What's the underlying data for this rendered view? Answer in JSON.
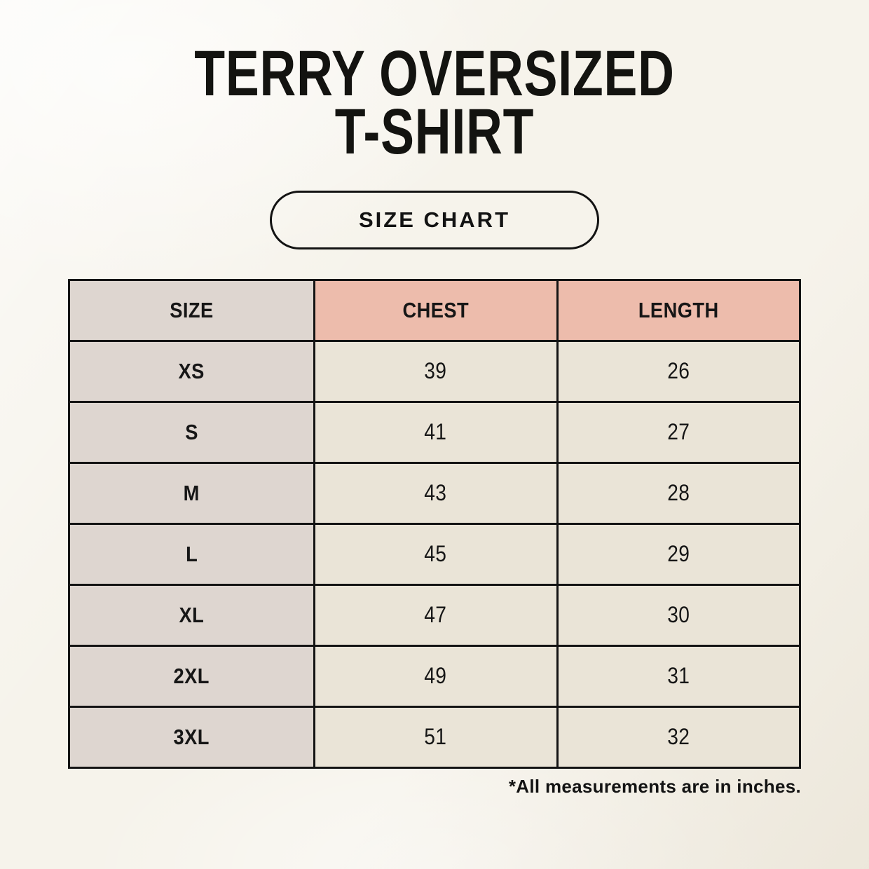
{
  "colors": {
    "background": "#f6f3eb",
    "header-salmon": "#edbcac",
    "column-gray": "#ded6d0",
    "cell-beige": "#eae4d7",
    "table-border": "#141414",
    "text": "#161616"
  },
  "header": {
    "title_line1": "TERRY OVERSIZED",
    "title_line2": "T-SHIRT",
    "badge_label": "SIZE CHART"
  },
  "chart_data": {
    "type": "table",
    "title": "TERRY OVERSIZED T-SHIRT",
    "columns": [
      "SIZE",
      "CHEST",
      "LENGTH"
    ],
    "rows": [
      {
        "size": "XS",
        "chest": 39,
        "length": 26
      },
      {
        "size": "S",
        "chest": 41,
        "length": 27
      },
      {
        "size": "M",
        "chest": 43,
        "length": 28
      },
      {
        "size": "L",
        "chest": 45,
        "length": 29
      },
      {
        "size": "XL",
        "chest": 47,
        "length": 30
      },
      {
        "size": "2XL",
        "chest": 49,
        "length": 31
      },
      {
        "size": "3XL",
        "chest": 51,
        "length": 32
      }
    ],
    "units": "inches",
    "note": "*All measurements are in inches."
  }
}
